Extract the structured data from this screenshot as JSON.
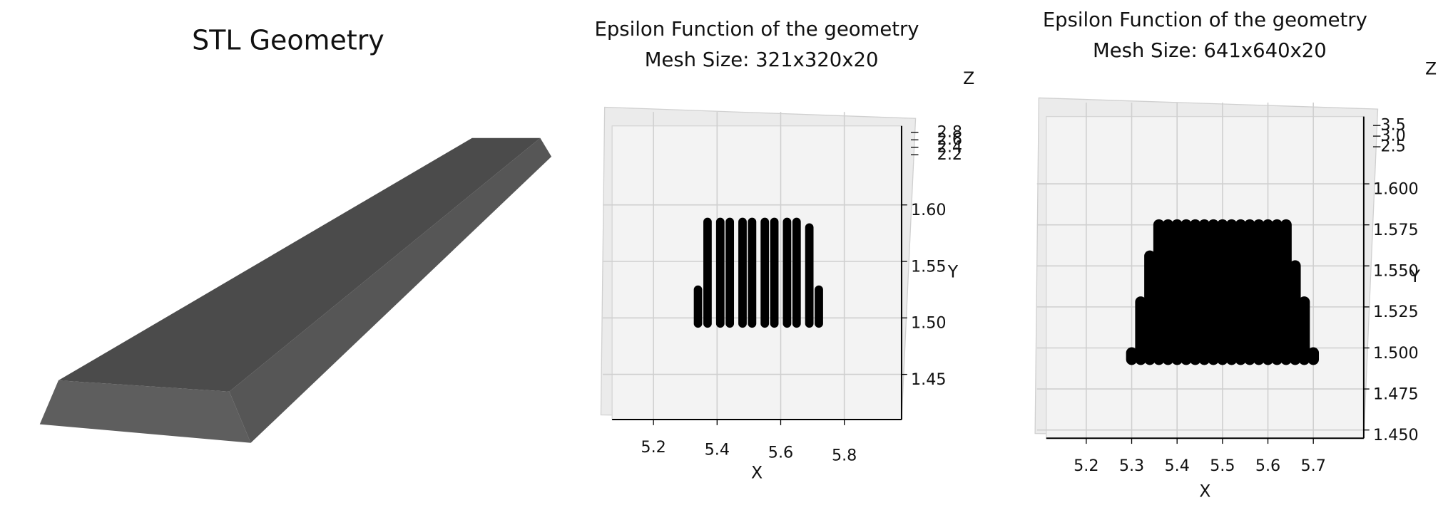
{
  "stl_panel": {
    "title": "STL Geometry"
  },
  "chart_data": [
    {
      "type": "scatter3d",
      "title": "Epsilon Function of the geometry",
      "subtitle": "Mesh Size: 321x320x20",
      "xlabel": "X",
      "ylabel": "Y",
      "zlabel": "Z",
      "xlim": [
        5.07,
        5.98
      ],
      "ylim": [
        1.41,
        1.67
      ],
      "zlim": [
        2.1,
        2.9
      ],
      "xticks": [
        5.2,
        5.4,
        5.6,
        5.8
      ],
      "yticks": [
        1.45,
        {
          "value": 1.5,
          "label": "1.50"
        },
        1.55,
        {
          "value": 1.6,
          "label": "1.60"
        }
      ],
      "zticks": [
        2.2,
        2.4,
        2.6,
        2.8
      ],
      "grid": true,
      "color": "#000000",
      "x": [
        5.34,
        5.37,
        5.41,
        5.44,
        5.48,
        5.51,
        5.55,
        5.58,
        5.62,
        5.65,
        5.69,
        5.72
      ],
      "ymin": [
        1.495,
        1.495,
        1.495,
        1.495,
        1.495,
        1.495,
        1.495,
        1.495,
        1.495,
        1.495,
        1.495,
        1.495
      ],
      "ymax": [
        1.525,
        1.585,
        1.585,
        1.585,
        1.585,
        1.585,
        1.585,
        1.585,
        1.585,
        1.585,
        1.58,
        1.525
      ]
    },
    {
      "type": "scatter3d",
      "title": "Epsilon Function of the geometry",
      "subtitle": "Mesh Size: 641x640x20",
      "xlabel": "X",
      "ylabel": "Y",
      "zlabel": "Z",
      "xlim": [
        5.112,
        5.811
      ],
      "ylim": [
        1.445,
        1.641
      ],
      "zlim": [
        2.3,
        3.7
      ],
      "xticks": [
        5.2,
        5.3,
        5.4,
        5.5,
        5.6,
        5.7
      ],
      "yticks": [
        {
          "value": 1.45,
          "label": "1.450"
        },
        1.475,
        {
          "value": 1.5,
          "label": "1.500"
        },
        1.525,
        {
          "value": 1.55,
          "label": "1.550"
        },
        1.575,
        {
          "value": 1.6,
          "label": "1.600"
        }
      ],
      "zticks": [
        2.5,
        {
          "value": 3,
          "label": "3.0"
        },
        3.5
      ],
      "grid": true,
      "color": "#000000",
      "x": [
        5.3,
        5.32,
        5.34,
        5.36,
        5.38,
        5.4,
        5.42,
        5.44,
        5.46,
        5.48,
        5.5,
        5.52,
        5.54,
        5.56,
        5.58,
        5.6,
        5.62,
        5.64,
        5.66,
        5.68,
        5.7
      ],
      "ymin": [
        1.493,
        1.493,
        1.493,
        1.493,
        1.493,
        1.493,
        1.493,
        1.493,
        1.493,
        1.493,
        1.493,
        1.493,
        1.493,
        1.493,
        1.493,
        1.493,
        1.493,
        1.493,
        1.493,
        1.493,
        1.493
      ],
      "ymax": [
        1.497,
        1.528,
        1.556,
        1.575,
        1.575,
        1.575,
        1.575,
        1.575,
        1.575,
        1.575,
        1.575,
        1.575,
        1.575,
        1.575,
        1.575,
        1.575,
        1.575,
        1.575,
        1.55,
        1.528,
        1.497
      ]
    }
  ]
}
